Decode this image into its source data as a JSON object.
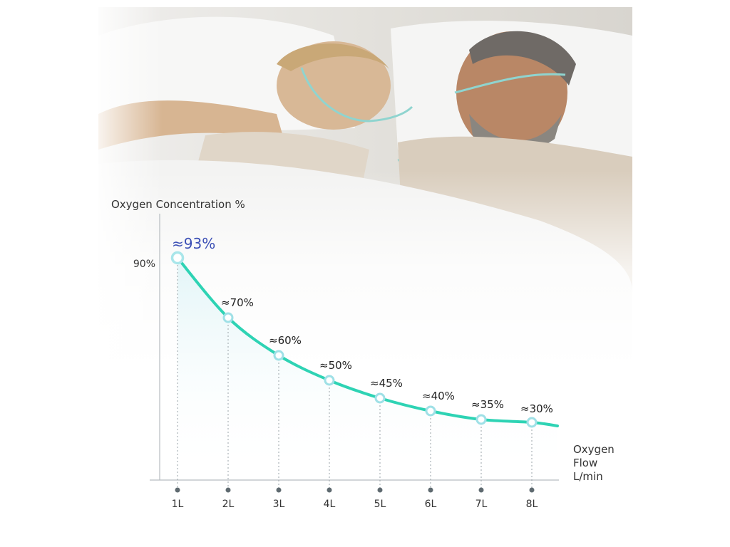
{
  "chart_data": {
    "type": "line",
    "ylabel": "Oxygen Concentration %",
    "xlabel_lines": [
      "Oxygen",
      "Flow",
      "L/min"
    ],
    "categories": [
      "1L",
      "2L",
      "3L",
      "4L",
      "5L",
      "6L",
      "7L",
      "8L"
    ],
    "x": [
      1,
      2,
      3,
      4,
      5,
      6,
      7,
      8
    ],
    "values": [
      93,
      70,
      60,
      50,
      45,
      40,
      35,
      30
    ],
    "data_labels": [
      "≈93%",
      "≈70%",
      "≈60%",
      "≈50%",
      "≈45%",
      "≈40%",
      "≈35%",
      "≈30%"
    ],
    "highlight_index": 0,
    "y_ticks": [
      {
        "value": 90,
        "label": "90%"
      }
    ],
    "line_color": "#2ed3b4",
    "highlight_color": "#3b4fb5",
    "grid": false
  }
}
